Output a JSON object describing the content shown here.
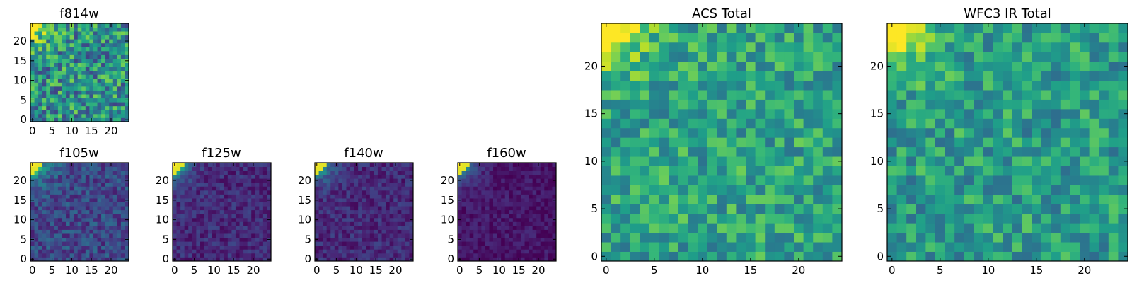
{
  "chart_data": [
    {
      "type": "heatmap",
      "title": "f814w",
      "xlabel": "",
      "ylabel": "",
      "grid_size": [
        25,
        25
      ],
      "xlim": [
        -0.5,
        24.5
      ],
      "ylim": [
        -0.5,
        24.5
      ],
      "xticks": [
        0,
        5,
        10,
        15,
        20
      ],
      "yticks": [
        0,
        5,
        10,
        15,
        20
      ],
      "colormap": "viridis",
      "pattern": "noisy field with bright top-left corner",
      "value_range": [
        0,
        1
      ],
      "corner_value": 1.0,
      "background_mean": 0.5,
      "background_spread": 0.3,
      "seed": 11
    },
    {
      "type": "heatmap",
      "title": "f105w",
      "xlabel": "",
      "ylabel": "",
      "grid_size": [
        25,
        25
      ],
      "xlim": [
        -0.5,
        24.5
      ],
      "ylim": [
        -0.5,
        24.5
      ],
      "xticks": [
        0,
        5,
        10,
        15,
        20
      ],
      "yticks": [
        0,
        5,
        10,
        15,
        20
      ],
      "colormap": "viridis",
      "pattern": "bright top-left corner fading into dark field",
      "value_range": [
        0,
        1
      ],
      "corner_value": 1.0,
      "background_mean": 0.22,
      "background_spread": 0.14,
      "seed": 23
    },
    {
      "type": "heatmap",
      "title": "f125w",
      "xlabel": "",
      "ylabel": "",
      "grid_size": [
        25,
        25
      ],
      "xlim": [
        -0.5,
        24.5
      ],
      "ylim": [
        -0.5,
        24.5
      ],
      "xticks": [
        0,
        5,
        10,
        15,
        20
      ],
      "yticks": [
        0,
        5,
        10,
        15,
        20
      ],
      "colormap": "viridis",
      "pattern": "bright top-left corner fading into dark field",
      "value_range": [
        0,
        1
      ],
      "corner_value": 1.0,
      "background_mean": 0.12,
      "background_spread": 0.1,
      "seed": 37
    },
    {
      "type": "heatmap",
      "title": "f140w",
      "xlabel": "",
      "ylabel": "",
      "grid_size": [
        25,
        25
      ],
      "xlim": [
        -0.5,
        24.5
      ],
      "ylim": [
        -0.5,
        24.5
      ],
      "xticks": [
        0,
        5,
        10,
        15,
        20
      ],
      "yticks": [
        0,
        5,
        10,
        15,
        20
      ],
      "colormap": "viridis",
      "pattern": "bright top-left corner fading into dark field",
      "value_range": [
        0,
        1
      ],
      "corner_value": 1.0,
      "background_mean": 0.12,
      "background_spread": 0.1,
      "seed": 41
    },
    {
      "type": "heatmap",
      "title": "f160w",
      "xlabel": "",
      "ylabel": "",
      "grid_size": [
        25,
        25
      ],
      "xlim": [
        -0.5,
        24.5
      ],
      "ylim": [
        -0.5,
        24.5
      ],
      "xticks": [
        0,
        5,
        10,
        15,
        20
      ],
      "yticks": [
        0,
        5,
        10,
        15,
        20
      ],
      "colormap": "viridis",
      "pattern": "bright top-left corner fading into dark field",
      "value_range": [
        0,
        1
      ],
      "corner_value": 1.0,
      "background_mean": 0.06,
      "background_spread": 0.07,
      "seed": 53
    },
    {
      "type": "heatmap",
      "title": "ACS Total",
      "xlabel": "",
      "ylabel": "",
      "grid_size": [
        25,
        25
      ],
      "xlim": [
        -0.5,
        24.5
      ],
      "ylim": [
        -0.5,
        24.5
      ],
      "xticks": [
        0,
        5,
        10,
        15,
        20
      ],
      "yticks": [
        0,
        5,
        10,
        15,
        20
      ],
      "colormap": "viridis",
      "pattern": "noisy field with bright top-left corner",
      "value_range": [
        0,
        1
      ],
      "corner_value": 1.0,
      "background_mean": 0.58,
      "background_spread": 0.2,
      "seed": 67
    },
    {
      "type": "heatmap",
      "title": "WFC3 IR Total",
      "xlabel": "",
      "ylabel": "",
      "grid_size": [
        25,
        25
      ],
      "xlim": [
        -0.5,
        24.5
      ],
      "ylim": [
        -0.5,
        24.5
      ],
      "xticks": [
        0,
        5,
        10,
        15,
        20
      ],
      "yticks": [
        0,
        5,
        10,
        15,
        20
      ],
      "colormap": "viridis",
      "pattern": "noisy field with bright top-left corner",
      "value_range": [
        0,
        1
      ],
      "corner_value": 1.0,
      "background_mean": 0.55,
      "background_spread": 0.2,
      "seed": 79
    }
  ]
}
